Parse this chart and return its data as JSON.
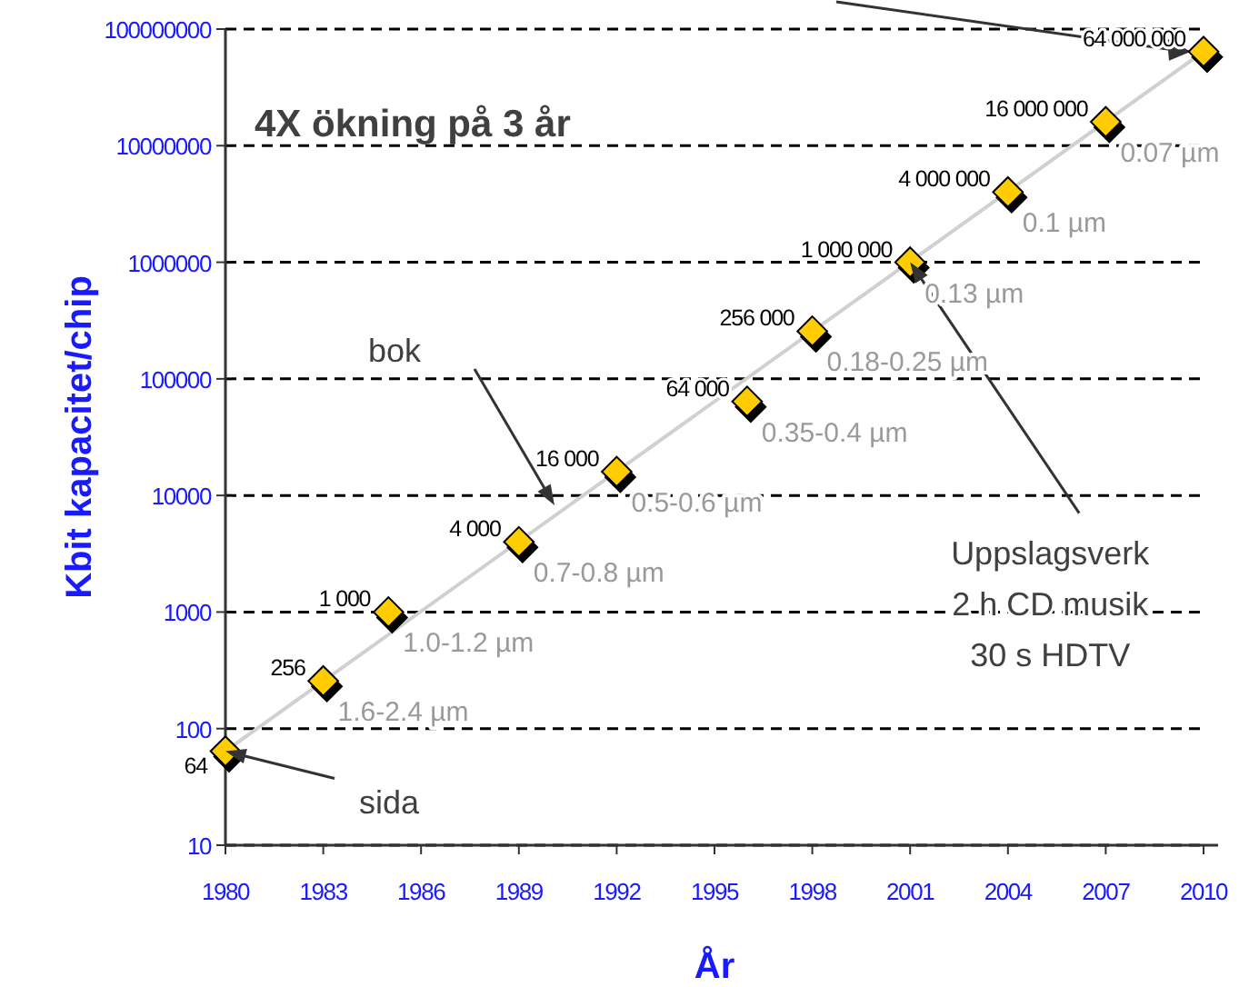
{
  "chart_data": {
    "type": "scatter",
    "xlabel": "År",
    "ylabel": "Kbit kapacitet/chip",
    "log": "y",
    "xlim": [
      1980,
      2010
    ],
    "xticks": [
      1980,
      1983,
      1986,
      1989,
      1992,
      1995,
      1998,
      2001,
      2004,
      2007,
      2010
    ],
    "ylim": [
      10,
      100000000
    ],
    "yticks": [
      10,
      100,
      1000,
      10000,
      100000,
      1000000,
      10000000,
      100000000
    ],
    "grid": "y",
    "legend": false,
    "series": [
      {
        "marker": "diamond",
        "color": "#ffcc00",
        "x": [
          1980,
          1983,
          1985,
          1989,
          1992,
          1996,
          1998,
          2001,
          2004,
          2007,
          2010
        ],
        "values": [
          64,
          256,
          1000,
          4000,
          16000,
          64000,
          256000,
          1000000,
          4000000,
          16000000,
          64000000
        ],
        "value_labels": [
          "64",
          "256",
          "1 000",
          "4 000",
          "16 000",
          "64 000",
          "256 000",
          "1 000 000",
          "4 000 000",
          "16 000 000",
          "64 000 000"
        ]
      },
      {
        "type": "line",
        "color": "#d0d0d0",
        "x": [
          1980,
          2010
        ],
        "values": [
          64,
          64000000
        ]
      }
    ],
    "annotations": [
      "4X ökning på 3 år",
      "bok",
      {
        "text": "sida",
        "x": 1980,
        "y": 64
      },
      {
        "text": "Uppslagsverk\n2 h CD musik\n30 s HDTV",
        "x": 2001,
        "y": 1000000
      },
      {
        "text": "1.6-2.4 µm",
        "x": 1983,
        "y": 256
      },
      {
        "text": "1.0-1.2 µm",
        "x": 1985,
        "y": 1000
      },
      {
        "text": "0.7-0.8 µm",
        "x": 1989,
        "y": 4000
      },
      {
        "text": "0.5-0.6 µm",
        "x": 1992,
        "y": 16000
      },
      {
        "text": "0.35-0.4 µm",
        "x": 1996,
        "y": 64000
      },
      {
        "text": "0.18-0.25 µm",
        "x": 1998,
        "y": 256000
      },
      {
        "text": "0.13 µm",
        "x": 2001,
        "y": 1000000
      },
      {
        "text": "0.1 µm",
        "x": 2004,
        "y": 4000000
      },
      {
        "text": "0.07 µm",
        "x": 2007,
        "y": 16000000
      }
    ]
  }
}
